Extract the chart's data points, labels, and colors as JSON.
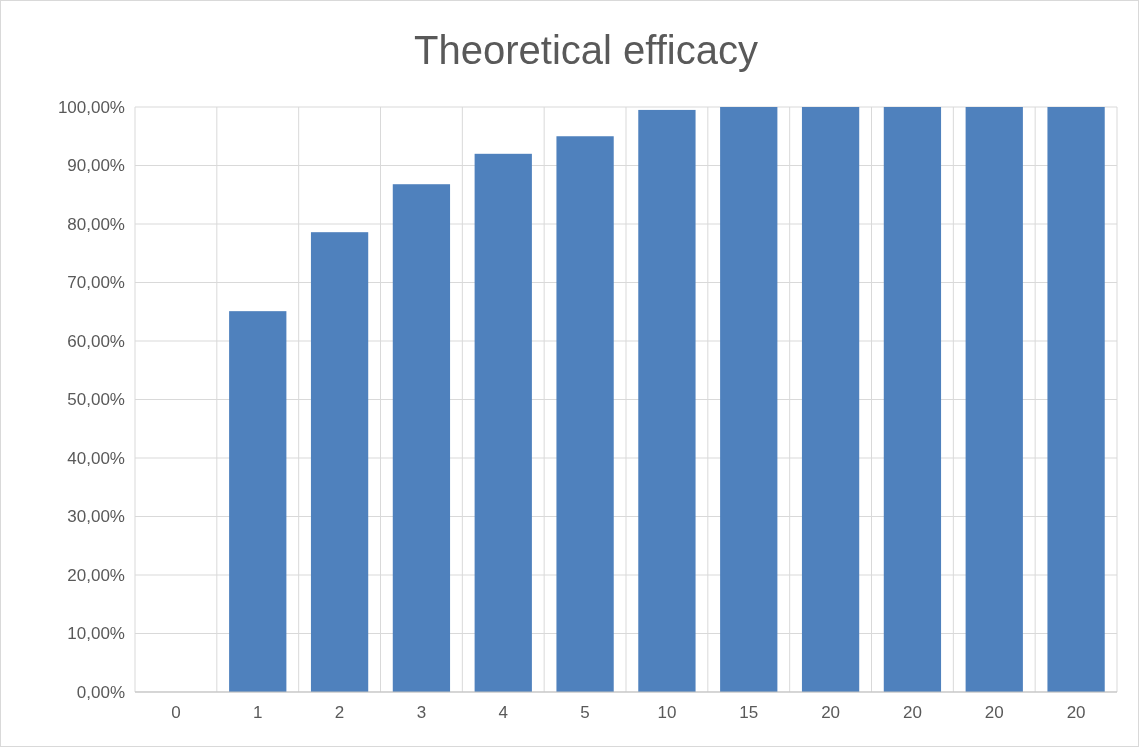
{
  "chart_data": {
    "type": "bar",
    "title": "Theoretical efficacy",
    "categories": [
      "0",
      "1",
      "2",
      "3",
      "4",
      "5",
      "10",
      "15",
      "20",
      "20",
      "20",
      "20"
    ],
    "values": [
      0,
      65.1,
      78.6,
      86.8,
      92.0,
      95.0,
      99.5,
      100,
      100,
      100,
      100,
      100
    ],
    "color": "#4f81bd",
    "ylim": [
      0,
      100
    ],
    "yticks": [
      {
        "value": 0,
        "label": "0,00%"
      },
      {
        "value": 10,
        "label": "10,00%"
      },
      {
        "value": 20,
        "label": "20,00%"
      },
      {
        "value": 30,
        "label": "30,00%"
      },
      {
        "value": 40,
        "label": "40,00%"
      },
      {
        "value": 50,
        "label": "50,00%"
      },
      {
        "value": 60,
        "label": "60,00%"
      },
      {
        "value": 70,
        "label": "70,00%"
      },
      {
        "value": 80,
        "label": "80,00%"
      },
      {
        "value": 90,
        "label": "90,00%"
      },
      {
        "value": 100,
        "label": "100,00%"
      }
    ],
    "grid": true
  }
}
